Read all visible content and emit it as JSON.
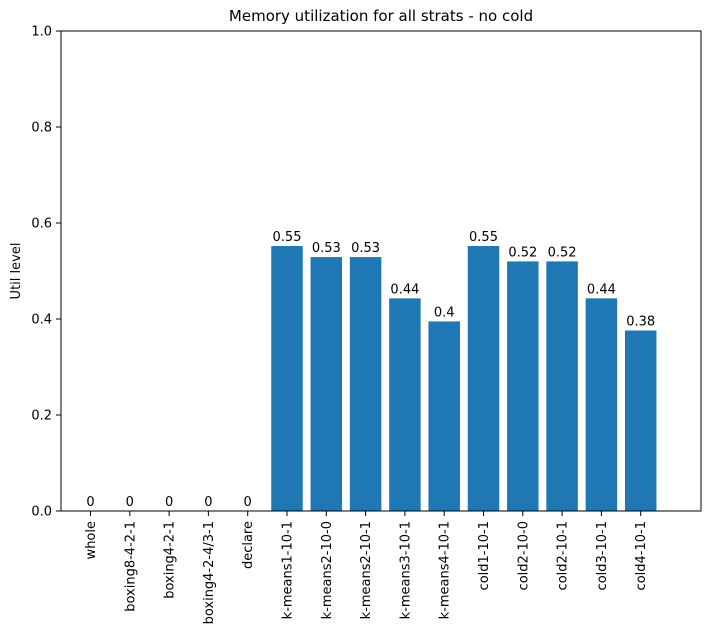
{
  "chart_data": {
    "type": "bar",
    "title": "Memory utilization for all strats - no cold",
    "xlabel": "",
    "ylabel": "Util level",
    "ylim": [
      0,
      1.0
    ],
    "yticks": [
      0.0,
      0.2,
      0.4,
      0.6,
      0.8,
      1.0
    ],
    "ytick_labels": [
      "0.0",
      "0.2",
      "0.4",
      "0.6",
      "0.8",
      "1.0"
    ],
    "grid": false,
    "bar_color": "#1f77b4",
    "categories": [
      "whole",
      "boxing8-4-2-1",
      "boxing4-2-1",
      "boxing4-2-4/3-1",
      "declare",
      "k-means1-10-1",
      "k-means2-10-0",
      "k-means2-10-1",
      "k-means3-10-1",
      "k-means4-10-1",
      "cold1-10-1",
      "cold2-10-0",
      "cold2-10-1",
      "cold3-10-1",
      "cold4-10-1"
    ],
    "values": [
      0,
      0,
      0,
      0,
      0,
      0.552,
      0.529,
      0.529,
      0.443,
      0.395,
      0.552,
      0.52,
      0.52,
      0.443,
      0.376
    ],
    "value_labels": [
      "0",
      "0",
      "0",
      "0",
      "0",
      "0.55",
      "0.53",
      "0.53",
      "0.44",
      "0.4",
      "0.55",
      "0.52",
      "0.52",
      "0.44",
      "0.38"
    ]
  }
}
